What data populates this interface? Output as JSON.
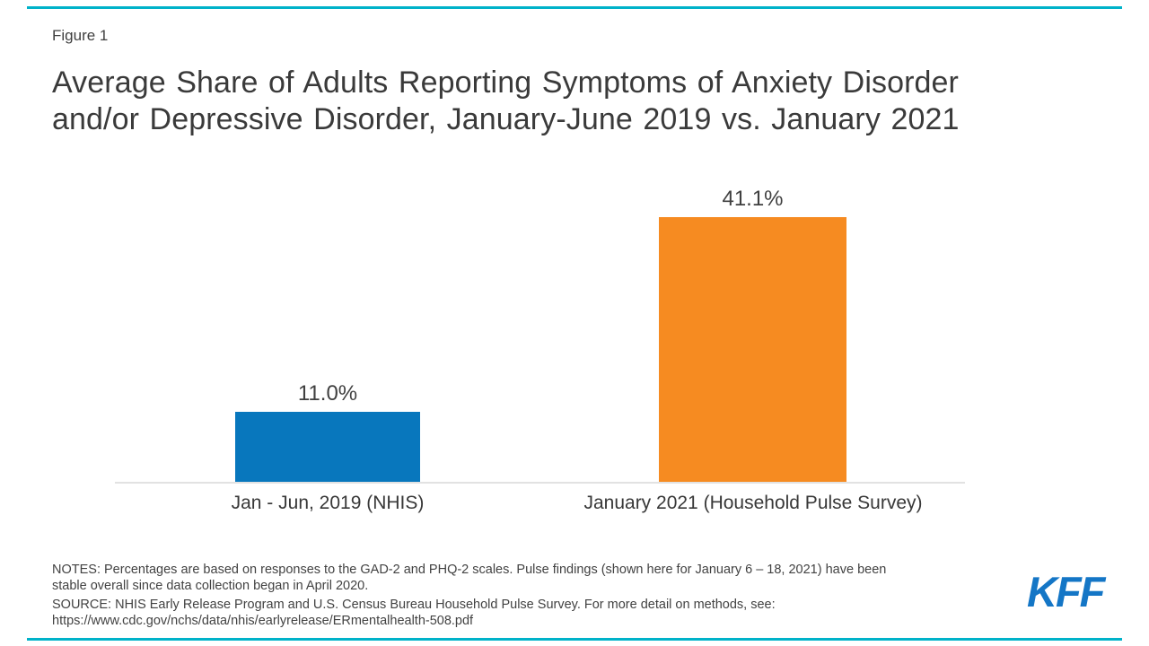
{
  "figure_label": "Figure 1",
  "title_lines": [
    "Average Share of Adults Reporting Symptoms of Anxiety Disorder",
    "and/or Depressive Disorder, January-June 2019 vs. January 2021"
  ],
  "chart_data": {
    "type": "bar",
    "categories": [
      "Jan - Jun, 2019 (NHIS)",
      "January 2021 (Household Pulse Survey)"
    ],
    "values": [
      11.0,
      41.1
    ],
    "value_labels": [
      "11.0%",
      "41.1%"
    ],
    "series_colors": [
      "#0877bd",
      "#f68b21"
    ],
    "title": "Average Share of Adults Reporting Symptoms of Anxiety Disorder and/or Depressive Disorder, January-June 2019 vs. January 2021",
    "xlabel": "",
    "ylabel": "",
    "ylim": [
      0,
      47
    ],
    "grid": false,
    "legend": "none"
  },
  "notes_lines": [
    "NOTES: Percentages are based on responses to the GAD-2 and PHQ-2 scales. Pulse findings (shown here for January 6 – 18, 2021) have been",
    "stable overall since data collection began in April 2020."
  ],
  "source_lines": [
    "SOURCE: NHIS Early Release Program and U.S. Census Bureau Household Pulse Survey. For more detail on methods, see:",
    "https://www.cdc.gov/nchs/data/nhis/earlyrelease/ERmentalhealth-508.pdf"
  ],
  "logo_text": "KFF",
  "colors": {
    "bar_blue": "#0877bd",
    "bar_orange": "#f68b21",
    "border_teal": "#00b2c9",
    "kff_logo_blue": "#1476c6",
    "axis_gray": "#e2e2e2",
    "text_dark": "#3a3a3a"
  }
}
